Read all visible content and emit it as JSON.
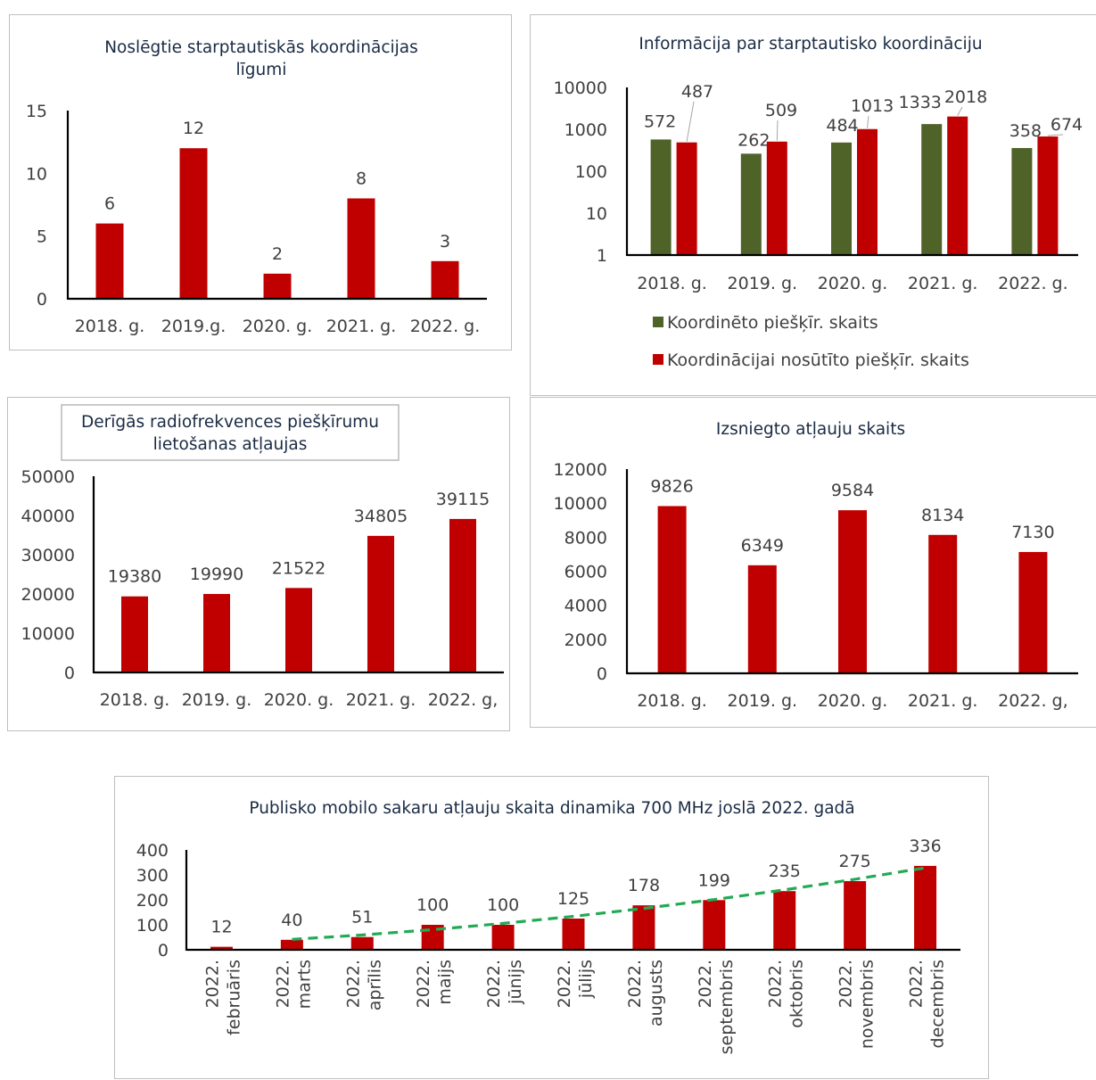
{
  "colors": {
    "red": "#C00000",
    "green": "#4F6228",
    "axis": "#000000",
    "trend": "#22AA55",
    "text": "#404040",
    "title": "#1a2b44"
  },
  "chart_data": [
    {
      "id": "c1",
      "type": "bar",
      "title_lines": [
        "Noslēgtie starptautiskās koordinācijas",
        "līgumi"
      ],
      "categories": [
        "2018. g.",
        "2019.g.",
        "2020. g.",
        "2021. g.",
        "2022. g."
      ],
      "values": [
        6,
        12,
        2,
        8,
        3
      ],
      "ylim": [
        0,
        15
      ],
      "yticks": [
        "0",
        "5",
        "10",
        "15"
      ]
    },
    {
      "id": "c2",
      "type": "bar",
      "title_lines": [
        "Informācija par starptautisko koordināciju"
      ],
      "categories": [
        "2018. g.",
        "2019. g.",
        "2020. g.",
        "2021. g.",
        "2022. g."
      ],
      "yscale": "log",
      "ylim": [
        1,
        10000
      ],
      "yticks": [
        "1",
        "10",
        "100",
        "1000",
        "10000"
      ],
      "series": [
        {
          "name": "Koordinēto piešķīr. skaits",
          "values": [
            572,
            262,
            484,
            1333,
            358
          ]
        },
        {
          "name": "Koordinācijai nosūtīto piešķīr. skaits",
          "values": [
            487,
            509,
            1013,
            2018,
            674
          ]
        }
      ],
      "legend": "bottom"
    },
    {
      "id": "c3",
      "type": "bar",
      "title_lines": [
        "Derīgās radiofrekvences piešķīrumu",
        "lietošanas atļaujas"
      ],
      "categories": [
        "2018. g.",
        "2019. g.",
        "2020. g.",
        "2021. g.",
        "2022. g,"
      ],
      "values": [
        19380,
        19990,
        21522,
        34805,
        39115
      ],
      "ylim": [
        0,
        50000
      ],
      "yticks": [
        "0",
        "10000",
        "20000",
        "30000",
        "40000",
        "50000"
      ]
    },
    {
      "id": "c4",
      "type": "bar",
      "title_lines": [
        "Izsniegto atļauju skaits"
      ],
      "categories": [
        "2018. g.",
        "2019. g.",
        "2020. g.",
        "2021. g.",
        "2022. g,"
      ],
      "values": [
        9826,
        6349,
        9584,
        8134,
        7130
      ],
      "ylim": [
        0,
        12000
      ],
      "yticks": [
        "0",
        "2000",
        "4000",
        "6000",
        "8000",
        "10000",
        "12000"
      ]
    },
    {
      "id": "c5",
      "type": "bar",
      "title_lines": [
        "Publisko mobilo sakaru atļauju skaita dinamika 700 MHz joslā 2022. gadā"
      ],
      "categories": [
        [
          "2022.",
          "februāris"
        ],
        [
          "2022.",
          "marts"
        ],
        [
          "2022.",
          "aprīlis"
        ],
        [
          "2022.",
          "maijs"
        ],
        [
          "2022.",
          "jūnijs"
        ],
        [
          "2022.",
          "jūlijs"
        ],
        [
          "2022.",
          "augusts"
        ],
        [
          "2022.",
          "septembris"
        ],
        [
          "2022.",
          "oktobris"
        ],
        [
          "2022.",
          "novembris"
        ],
        [
          "2022.",
          "decembris"
        ]
      ],
      "values": [
        12,
        40,
        51,
        100,
        100,
        125,
        178,
        199,
        235,
        275,
        336
      ],
      "ylim": [
        0,
        400
      ],
      "yticks": [
        "0",
        "100",
        "200",
        "300",
        "400"
      ],
      "trendline": "dashed green, from 2022. marts"
    }
  ]
}
